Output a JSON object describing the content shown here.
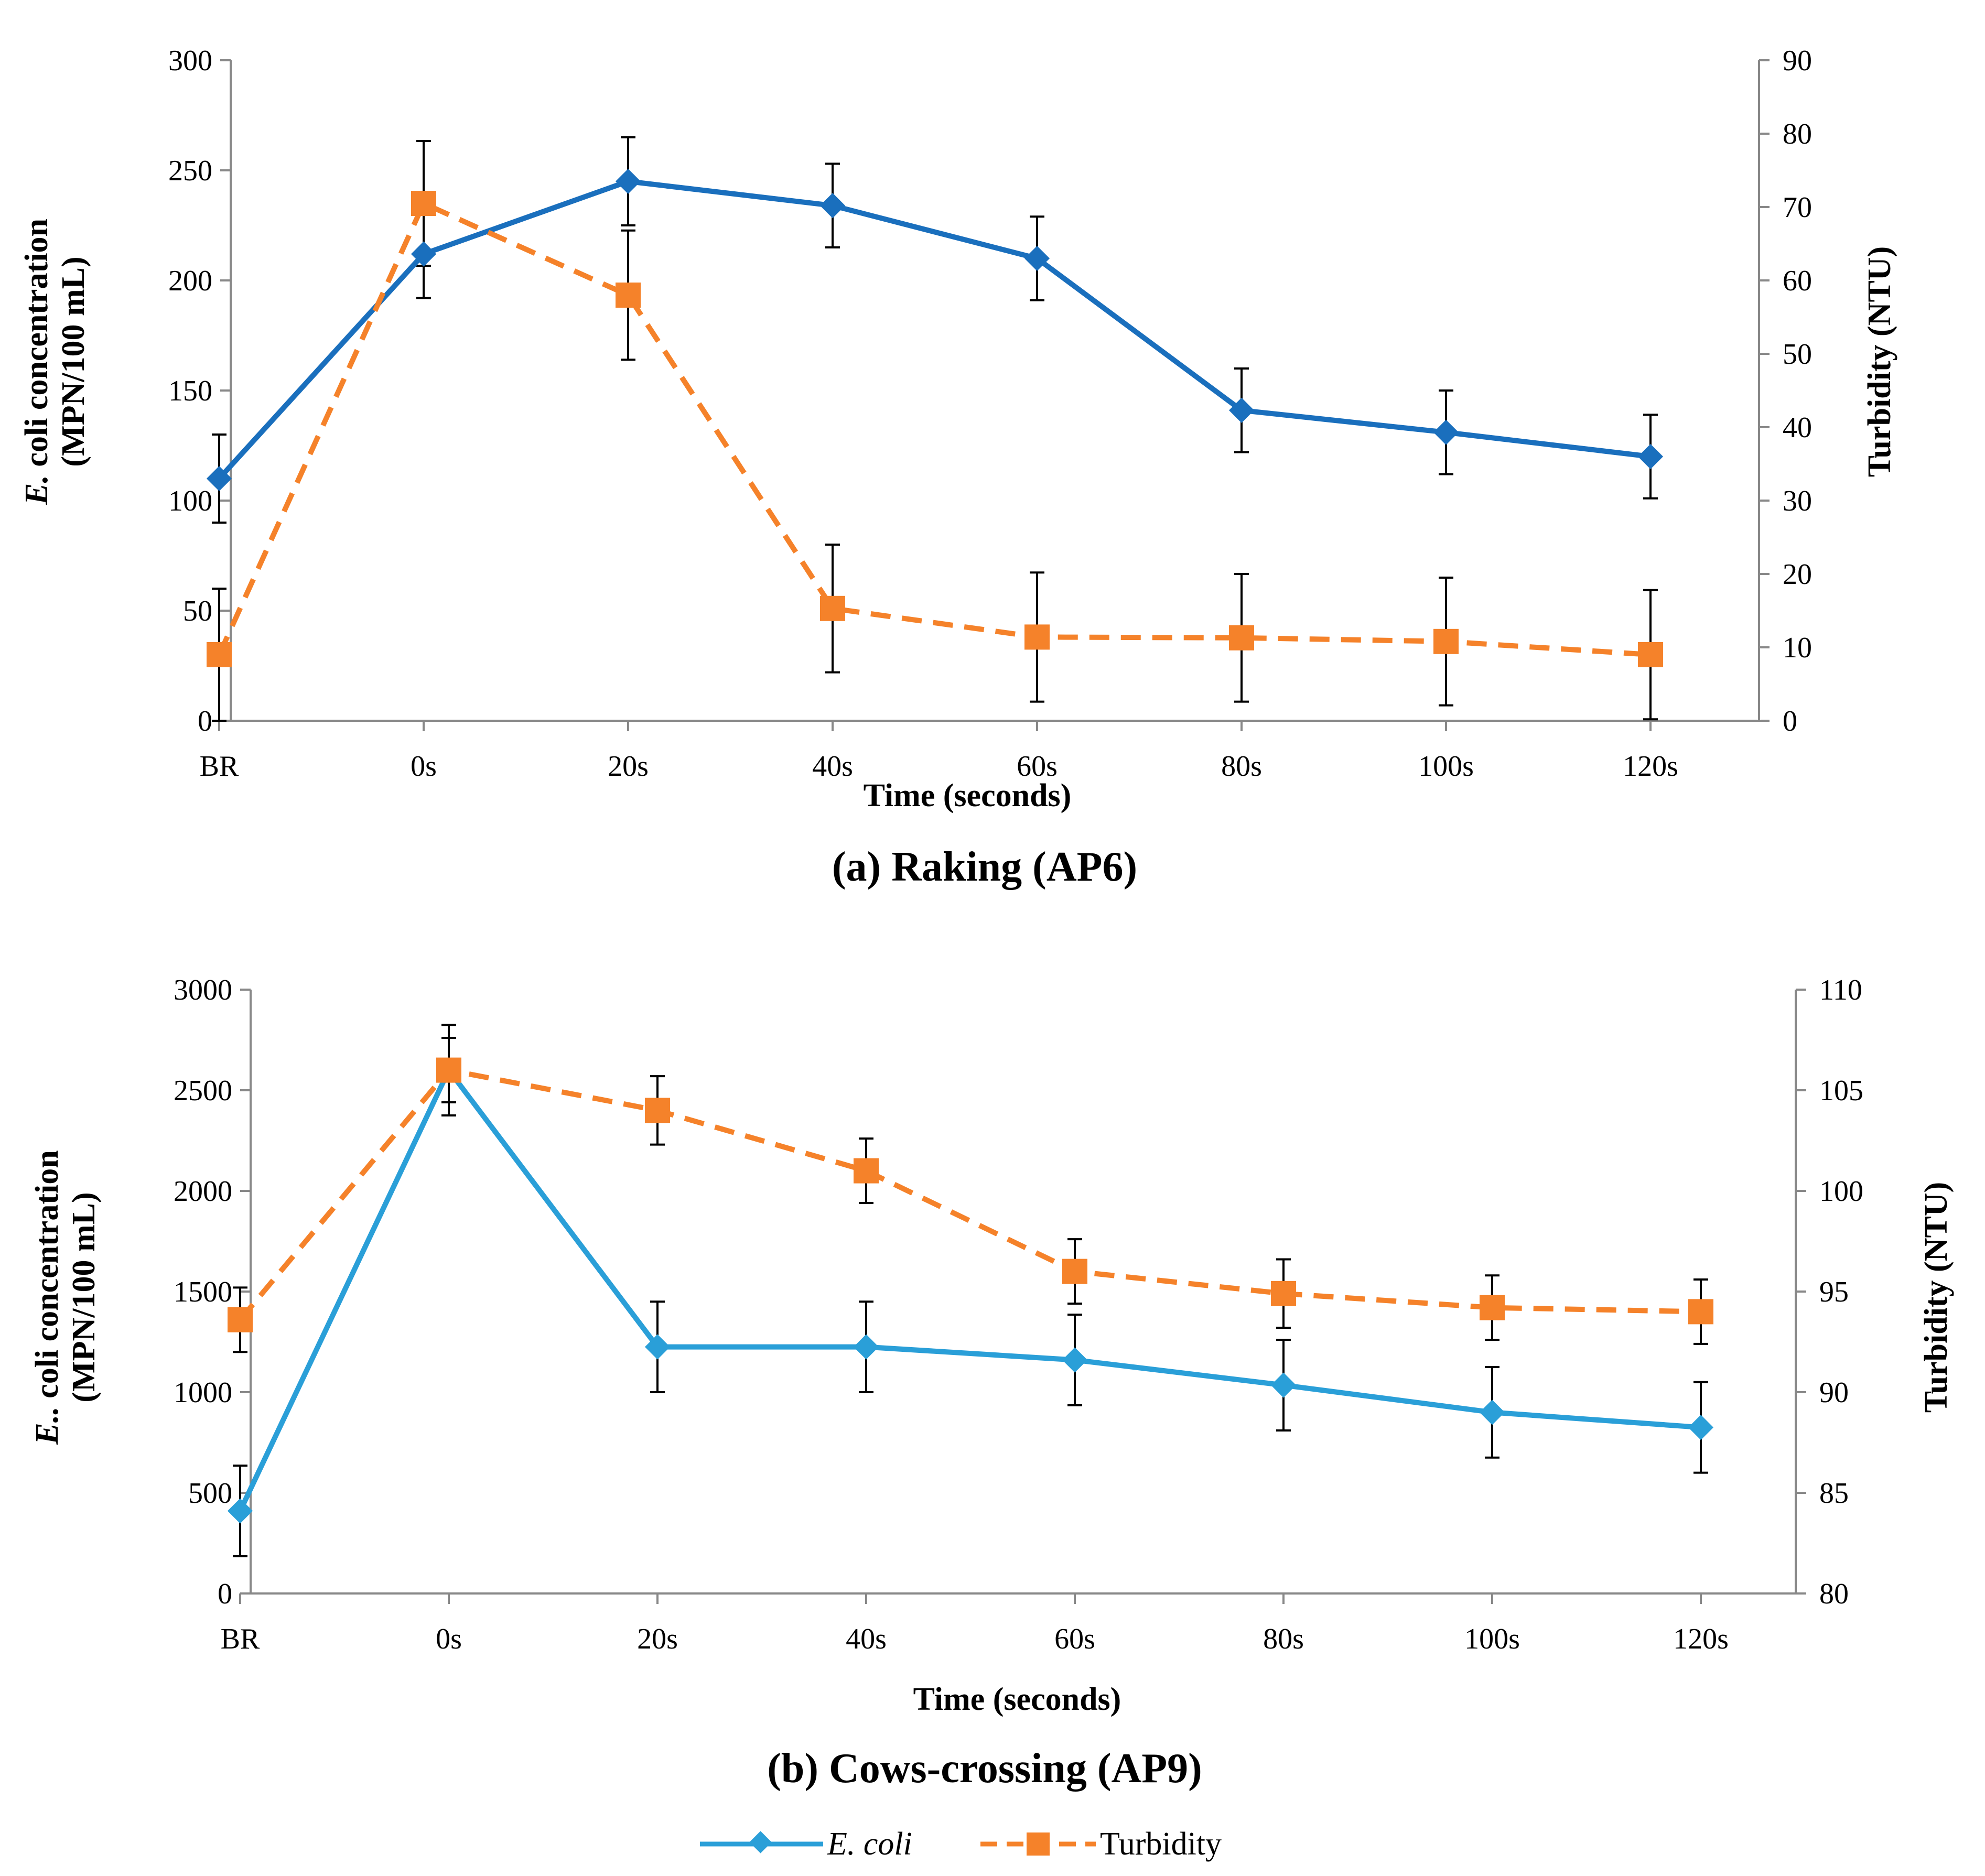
{
  "colors": {
    "ecoli_a": "#1a6fbd",
    "ecoli_b": "#2a9fd8",
    "turbidity": "#f5822a",
    "error_bar": "#000000",
    "axis": "#888888"
  },
  "legend": {
    "ecoli_label": "E. coli",
    "turbidity_label": "Turbidity",
    "ecoli_marker": "diamond",
    "turbidity_marker": "square"
  },
  "chart_data": [
    {
      "type": "line",
      "caption": "(a) Raking (AP6)",
      "xlabel": "Time  (seconds)",
      "ylabel_italic": "E.",
      "ylabel_rest": " coli concentration",
      "ylabel_line2": "(MPN/100 mL)",
      "y2label": "Turbidity (NTU)",
      "categories": [
        "BR",
        "0s",
        "20s",
        "40s",
        "60s",
        "80s",
        "100s",
        "120s"
      ],
      "ylim": [
        0,
        300
      ],
      "yticks": [
        0,
        50,
        100,
        150,
        200,
        250,
        300
      ],
      "y2lim": [
        0,
        90
      ],
      "y2ticks": [
        0,
        10,
        20,
        30,
        40,
        50,
        60,
        70,
        80,
        90
      ],
      "series": [
        {
          "name": "E. coli",
          "axis": "left",
          "values": [
            110,
            212,
            245,
            234,
            210,
            141,
            131,
            120
          ],
          "errors": [
            20,
            20,
            20,
            19,
            19,
            19,
            19,
            19
          ]
        },
        {
          "name": "Turbidity",
          "axis": "right",
          "values": [
            9,
            70.5,
            58,
            15.3,
            11.4,
            11.3,
            10.8,
            9
          ],
          "errors": [
            9,
            8.5,
            8.8,
            8.7,
            8.8,
            8.7,
            8.7,
            8.8
          ]
        }
      ]
    },
    {
      "type": "line",
      "caption": "(b) Cows-crossing (AP9)",
      "xlabel": "Time  (seconds)",
      "ylabel_italic": "E..",
      "ylabel_rest": " coli concentration",
      "ylabel_line2": "(MPN/100 mL)",
      "y2label": "Turbidity (NTU)",
      "categories": [
        "BR",
        "0s",
        "20s",
        "40s",
        "60s",
        "80s",
        "100s",
        "120s"
      ],
      "ylim": [
        0,
        3000
      ],
      "yticks": [
        0,
        500,
        1000,
        1500,
        2000,
        2500,
        3000
      ],
      "y2lim": [
        80,
        110
      ],
      "y2ticks": [
        80,
        85,
        90,
        95,
        100,
        105,
        110
      ],
      "series": [
        {
          "name": "E. coli",
          "axis": "left",
          "values": [
            410,
            2600,
            1225,
            1225,
            1160,
            1035,
            900,
            825
          ],
          "errors": [
            225,
            225,
            225,
            225,
            225,
            225,
            225,
            225
          ]
        },
        {
          "name": "Turbidity",
          "axis": "right",
          "values": [
            93.6,
            106,
            104,
            101,
            96,
            94.9,
            94.2,
            94
          ],
          "errors": [
            1.6,
            1.6,
            1.7,
            1.6,
            1.6,
            1.7,
            1.6,
            1.6
          ]
        }
      ]
    }
  ]
}
